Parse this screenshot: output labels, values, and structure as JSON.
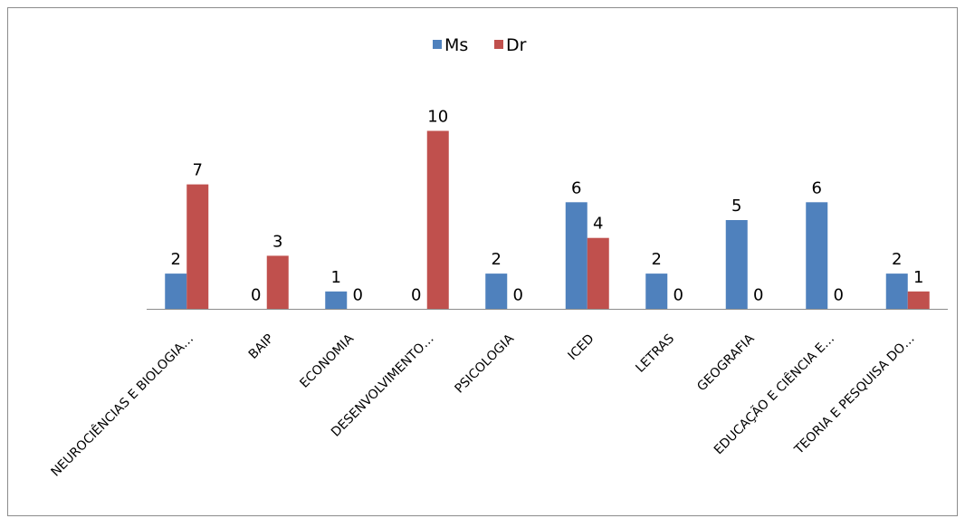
{
  "chart_data": {
    "type": "bar",
    "title": "",
    "xlabel": "",
    "ylabel": "",
    "ylim": [
      0,
      10
    ],
    "grid": false,
    "legend_position": "top",
    "categories": [
      "NEUROCIÊNCIAS E BIOLOGIA…",
      "BAIP",
      "ECONOMIA",
      "DESENVOLVIMENTO…",
      "PSICOLOGIA",
      "ICED",
      "LETRAS",
      "GEOGRAFIA",
      "EDUCAÇÃO E CIÊNCIA E…",
      "TEORIA E PESQUISA DO…"
    ],
    "series": [
      {
        "name": "Ms",
        "color": "#4f81bd",
        "values": [
          2,
          0,
          1,
          0,
          2,
          6,
          2,
          5,
          6,
          2
        ]
      },
      {
        "name": "Dr",
        "color": "#c0504d",
        "values": [
          7,
          3,
          0,
          10,
          0,
          4,
          0,
          0,
          0,
          1
        ]
      }
    ]
  }
}
